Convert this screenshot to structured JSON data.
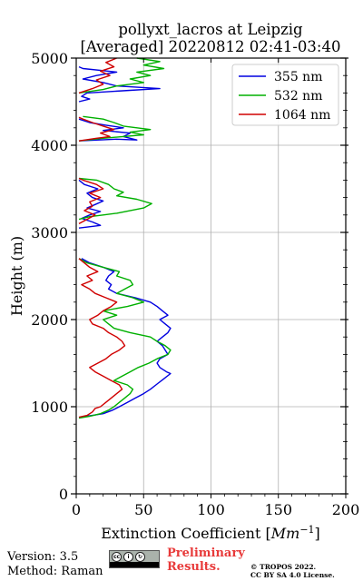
{
  "chart_data": {
    "type": "line",
    "title": [
      "pollyxt_lacros at Leipzig",
      "[Averaged] 20220812 02:41-03:40"
    ],
    "xlabel": "Extinction Coefficient [",
    "xlabel_unit": "Mm",
    "xlabel_exp": "−1",
    "xlabel_close": "]",
    "ylabel": "Height (m)",
    "xlim": [
      0,
      200
    ],
    "ylim": [
      0,
      5000
    ],
    "xticks": [
      0,
      50,
      100,
      150,
      200
    ],
    "yticks": [
      0,
      1000,
      2000,
      3000,
      4000,
      5000
    ],
    "xtick_labels": [
      "0",
      "50",
      "100",
      "150",
      "200"
    ],
    "ytick_labels": [
      "0",
      "1000",
      "2000",
      "3000",
      "4000",
      "5000"
    ],
    "grid": true,
    "legend_position": "top-right",
    "series": [
      {
        "name": "355 nm",
        "color": "#0000e0",
        "segments": [
          [
            [
              3,
              880
            ],
            [
              12,
              900
            ],
            [
              20,
              920
            ],
            [
              27,
              960
            ],
            [
              32,
              1000
            ],
            [
              38,
              1050
            ],
            [
              44,
              1100
            ],
            [
              50,
              1150
            ],
            [
              55,
              1200
            ],
            [
              60,
              1260
            ],
            [
              65,
              1320
            ],
            [
              70,
              1380
            ],
            [
              67,
              1400
            ],
            [
              62,
              1450
            ],
            [
              60,
              1500
            ],
            [
              62,
              1550
            ],
            [
              68,
              1600
            ],
            [
              66,
              1650
            ],
            [
              64,
              1700
            ],
            [
              60,
              1750
            ],
            [
              64,
              1800
            ],
            [
              68,
              1850
            ],
            [
              70,
              1900
            ],
            [
              66,
              1950
            ],
            [
              62,
              2000
            ],
            [
              68,
              2050
            ],
            [
              64,
              2100
            ],
            [
              60,
              2150
            ],
            [
              55,
              2200
            ],
            [
              44,
              2250
            ],
            [
              30,
              2300
            ],
            [
              24,
              2350
            ],
            [
              26,
              2400
            ],
            [
              22,
              2450
            ],
            [
              24,
              2500
            ],
            [
              28,
              2550
            ],
            [
              20,
              2600
            ],
            [
              10,
              2650
            ],
            [
              4,
              2700
            ]
          ],
          [
            [
              2,
              3050
            ],
            [
              18,
              3080
            ],
            [
              12,
              3120
            ],
            [
              4,
              3160
            ],
            [
              10,
              3200
            ],
            [
              18,
              3240
            ],
            [
              8,
              3280
            ],
            [
              14,
              3320
            ],
            [
              20,
              3360
            ],
            [
              12,
              3400
            ],
            [
              8,
              3450
            ],
            [
              16,
              3500
            ],
            [
              6,
              3550
            ],
            [
              2,
              3600
            ]
          ],
          [
            [
              2,
              4050
            ],
            [
              30,
              4070
            ],
            [
              45,
              4060
            ],
            [
              35,
              4100
            ],
            [
              40,
              4140
            ],
            [
              20,
              4170
            ],
            [
              35,
              4200
            ],
            [
              22,
              4230
            ],
            [
              10,
              4260
            ],
            [
              2,
              4300
            ]
          ],
          [
            [
              2,
              4500
            ],
            [
              10,
              4530
            ],
            [
              4,
              4560
            ],
            [
              8,
              4600
            ],
            [
              40,
              4630
            ],
            [
              62,
              4650
            ],
            [
              30,
              4680
            ],
            [
              20,
              4720
            ],
            [
              5,
              4760
            ],
            [
              15,
              4800
            ],
            [
              30,
              4840
            ],
            [
              5,
              4880
            ],
            [
              2,
              4900
            ]
          ]
        ]
      },
      {
        "name": "532 nm",
        "color": "#00b000",
        "segments": [
          [
            [
              2,
              870
            ],
            [
              10,
              890
            ],
            [
              18,
              920
            ],
            [
              24,
              960
            ],
            [
              28,
              1000
            ],
            [
              32,
              1050
            ],
            [
              36,
              1100
            ],
            [
              40,
              1150
            ],
            [
              42,
              1200
            ],
            [
              38,
              1250
            ],
            [
              28,
              1300
            ],
            [
              34,
              1350
            ],
            [
              40,
              1400
            ],
            [
              46,
              1450
            ],
            [
              54,
              1500
            ],
            [
              60,
              1550
            ],
            [
              68,
              1600
            ],
            [
              70,
              1650
            ],
            [
              66,
              1700
            ],
            [
              60,
              1750
            ],
            [
              55,
              1800
            ],
            [
              40,
              1850
            ],
            [
              28,
              1900
            ],
            [
              24,
              1950
            ],
            [
              20,
              2000
            ],
            [
              30,
              2050
            ],
            [
              20,
              2100
            ],
            [
              38,
              2150
            ],
            [
              50,
              2200
            ],
            [
              42,
              2250
            ],
            [
              30,
              2300
            ],
            [
              36,
              2350
            ],
            [
              42,
              2400
            ],
            [
              40,
              2450
            ],
            [
              30,
              2500
            ],
            [
              32,
              2550
            ],
            [
              20,
              2600
            ],
            [
              8,
              2650
            ],
            [
              2,
              2700
            ]
          ],
          [
            [
              2,
              3150
            ],
            [
              10,
              3180
            ],
            [
              20,
              3200
            ],
            [
              30,
              3220
            ],
            [
              50,
              3280
            ],
            [
              56,
              3330
            ],
            [
              45,
              3380
            ],
            [
              30,
              3420
            ],
            [
              35,
              3460
            ],
            [
              28,
              3500
            ],
            [
              24,
              3550
            ],
            [
              15,
              3600
            ],
            [
              2,
              3620
            ]
          ],
          [
            [
              2,
              4050
            ],
            [
              20,
              4080
            ],
            [
              35,
              4100
            ],
            [
              50,
              4120
            ],
            [
              40,
              4150
            ],
            [
              55,
              4180
            ],
            [
              35,
              4220
            ],
            [
              28,
              4260
            ],
            [
              20,
              4300
            ],
            [
              5,
              4330
            ]
          ],
          [
            [
              2,
              4600
            ],
            [
              20,
              4640
            ],
            [
              30,
              4680
            ],
            [
              50,
              4720
            ],
            [
              40,
              4760
            ],
            [
              55,
              4800
            ],
            [
              45,
              4840
            ],
            [
              65,
              4880
            ],
            [
              50,
              4920
            ],
            [
              62,
              4960
            ],
            [
              45,
              5000
            ]
          ]
        ]
      },
      {
        "name": "1064 nm",
        "color": "#d00000",
        "segments": [
          [
            [
              2,
              880
            ],
            [
              8,
              900
            ],
            [
              12,
              940
            ],
            [
              14,
              980
            ],
            [
              18,
              1000
            ],
            [
              22,
              1050
            ],
            [
              26,
              1100
            ],
            [
              30,
              1150
            ],
            [
              34,
              1200
            ],
            [
              32,
              1250
            ],
            [
              26,
              1300
            ],
            [
              20,
              1350
            ],
            [
              14,
              1400
            ],
            [
              10,
              1450
            ],
            [
              16,
              1500
            ],
            [
              22,
              1550
            ],
            [
              26,
              1600
            ],
            [
              32,
              1650
            ],
            [
              36,
              1700
            ],
            [
              34,
              1750
            ],
            [
              30,
              1800
            ],
            [
              24,
              1850
            ],
            [
              20,
              1900
            ],
            [
              12,
              1950
            ],
            [
              10,
              2000
            ],
            [
              16,
              2050
            ],
            [
              20,
              2100
            ],
            [
              26,
              2150
            ],
            [
              30,
              2200
            ],
            [
              22,
              2250
            ],
            [
              14,
              2300
            ],
            [
              10,
              2350
            ],
            [
              4,
              2400
            ],
            [
              12,
              2450
            ],
            [
              8,
              2500
            ],
            [
              16,
              2550
            ],
            [
              10,
              2600
            ],
            [
              6,
              2650
            ],
            [
              2,
              2700
            ]
          ],
          [
            [
              2,
              3100
            ],
            [
              8,
              3150
            ],
            [
              14,
              3200
            ],
            [
              6,
              3250
            ],
            [
              12,
              3300
            ],
            [
              10,
              3350
            ],
            [
              18,
              3400
            ],
            [
              10,
              3450
            ],
            [
              20,
              3500
            ],
            [
              15,
              3550
            ],
            [
              5,
              3600
            ],
            [
              2,
              3620
            ]
          ],
          [
            [
              2,
              4050
            ],
            [
              15,
              4080
            ],
            [
              25,
              4100
            ],
            [
              18,
              4140
            ],
            [
              28,
              4180
            ],
            [
              20,
              4220
            ],
            [
              12,
              4260
            ],
            [
              5,
              4300
            ],
            [
              2,
              4320
            ]
          ],
          [
            [
              2,
              4600
            ],
            [
              12,
              4650
            ],
            [
              20,
              4700
            ],
            [
              15,
              4750
            ],
            [
              25,
              4800
            ],
            [
              18,
              4850
            ],
            [
              28,
              4900
            ],
            [
              22,
              4950
            ],
            [
              30,
              5000
            ]
          ]
        ]
      }
    ]
  },
  "footer": {
    "version": "Version: 3.5",
    "method": "Method: Raman",
    "preliminary_1": "Preliminary",
    "preliminary_2": "Results.",
    "copyright_1": "© TROPOS 2022.",
    "copyright_2": "CC BY SA 4.0 License."
  }
}
